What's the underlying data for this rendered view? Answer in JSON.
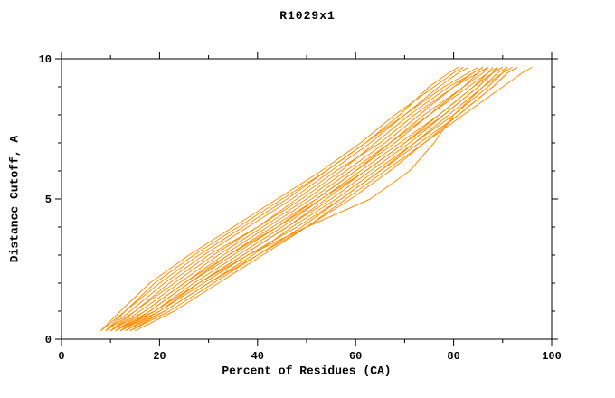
{
  "chart_data": {
    "type": "line",
    "title": "R1029x1",
    "xlabel": "Percent of Residues (CA)",
    "ylabel": "Distance Cutoff, A",
    "xlim": [
      0,
      100
    ],
    "ylim": [
      0,
      10
    ],
    "x_major_ticks": [
      0,
      20,
      40,
      60,
      80,
      100
    ],
    "x_minor_step": 10,
    "y_major_ticks": [
      0,
      5,
      10
    ],
    "y_minor_step": 1,
    "grid": false,
    "legend": "none",
    "line_color": "#ff8c00",
    "text_color": "#000000",
    "y_levels": [
      0.3,
      1,
      2,
      3,
      4,
      5,
      6,
      7,
      8,
      9,
      9.5,
      9.7
    ],
    "series_x": [
      [
        8,
        12,
        18,
        26,
        35,
        44,
        53,
        61,
        68,
        76,
        80,
        82
      ],
      [
        9,
        14,
        21,
        29,
        38,
        47,
        55,
        63,
        70,
        78,
        83,
        85
      ],
      [
        10,
        15,
        22,
        30,
        40,
        49,
        57,
        64,
        71,
        79,
        84,
        86
      ],
      [
        10,
        16,
        24,
        32,
        41,
        50,
        58,
        66,
        73,
        80,
        85,
        87
      ],
      [
        11,
        17,
        25,
        33,
        42,
        51,
        59,
        67,
        74,
        82,
        86,
        87
      ],
      [
        11,
        18,
        26,
        35,
        44,
        52,
        60,
        68,
        75,
        83,
        87,
        88
      ],
      [
        12,
        19,
        27,
        36,
        45,
        53,
        61,
        69,
        77,
        84,
        88,
        89
      ],
      [
        12,
        20,
        28,
        37,
        46,
        54,
        62,
        70,
        78,
        85,
        88,
        90
      ],
      [
        13,
        21,
        30,
        39,
        47,
        56,
        64,
        72,
        79,
        86,
        90,
        91
      ],
      [
        14,
        22,
        31,
        40,
        49,
        57,
        65,
        73,
        81,
        88,
        91,
        93
      ],
      [
        15,
        23,
        32,
        41,
        50,
        58,
        66,
        74,
        82,
        90,
        94,
        96
      ],
      [
        8,
        13,
        20,
        28,
        37,
        46,
        54,
        62,
        70,
        77,
        81,
        83
      ],
      [
        9,
        15,
        23,
        31,
        40,
        48,
        56,
        65,
        72,
        80,
        84,
        86
      ],
      [
        10,
        17,
        25,
        34,
        43,
        52,
        60,
        67,
        75,
        82,
        85,
        87
      ],
      [
        11,
        19,
        28,
        37,
        46,
        55,
        63,
        71,
        78,
        85,
        88,
        90
      ],
      [
        13,
        20,
        29,
        38,
        48,
        57,
        65,
        72,
        80,
        87,
        90,
        92
      ],
      [
        12,
        18,
        26,
        34,
        44,
        53,
        62,
        70,
        77,
        84,
        87,
        89
      ],
      [
        14,
        21,
        30,
        40,
        50,
        59,
        67,
        74,
        81,
        88,
        91,
        93
      ],
      [
        12,
        19,
        28,
        38,
        50,
        63,
        71,
        76,
        80,
        86,
        89,
        91
      ],
      [
        9,
        13,
        19,
        27,
        36,
        45,
        54,
        62,
        69,
        75,
        79,
        81
      ]
    ]
  }
}
